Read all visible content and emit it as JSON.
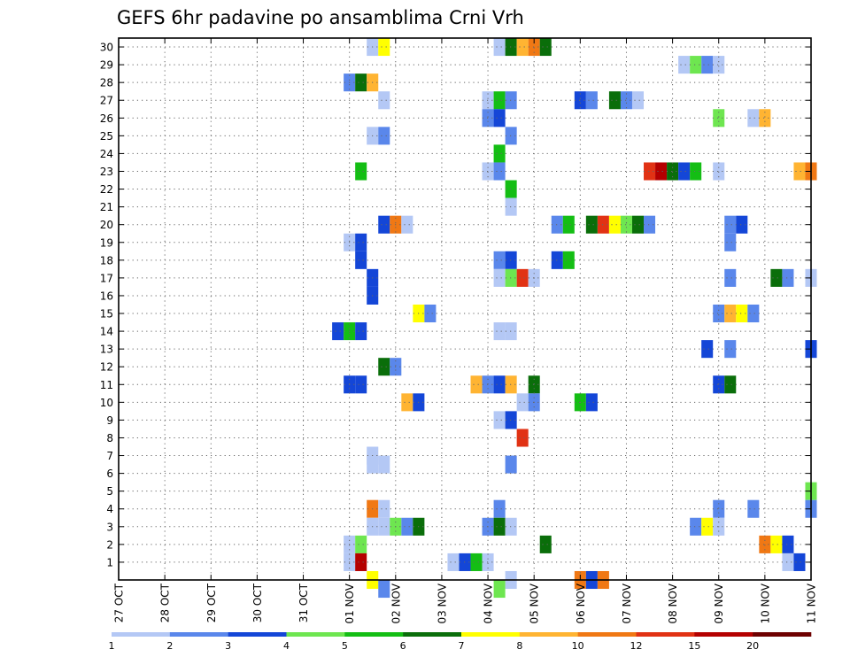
{
  "chart_data": {
    "type": "heatmap",
    "title": "GEFS 6hr padavine po ansamblima Crni Vrh",
    "x_tick_labels": [
      "27 OCT",
      "28 OCT",
      "29 OCT",
      "30 OCT",
      "31 OCT",
      "01 NOV",
      "02 NOV",
      "03 NOV",
      "04 NOV",
      "05 NOV",
      "06 NOV",
      "07 NOV",
      "08 NOV",
      "09 NOV",
      "10 NOV",
      "11 NOV"
    ],
    "y_tick_labels": [
      "1",
      "2",
      "3",
      "4",
      "5",
      "6",
      "7",
      "8",
      "9",
      "10",
      "11",
      "12",
      "13",
      "14",
      "15",
      "16",
      "17",
      "18",
      "19",
      "20",
      "21",
      "22",
      "23",
      "24",
      "25",
      "26",
      "27",
      "28",
      "29",
      "30"
    ],
    "steps_per_day": 4,
    "n_steps": 61,
    "ylim": [
      0,
      30.5
    ],
    "grid": true,
    "colorbar_labels": [
      "1",
      "2",
      "3",
      "4",
      "5",
      "6",
      "7",
      "8",
      "10",
      "12",
      "15",
      "20"
    ],
    "colors": [
      "#b4c8f5",
      "#5a87eb",
      "#1446d7",
      "#6ee650",
      "#14be14",
      "#0a6e0a",
      "#ffff00",
      "#ffb432",
      "#f07814",
      "#e13214",
      "#b40000",
      "#6e0000"
    ],
    "cells": [
      [
        22,
        30,
        1
      ],
      [
        23,
        30,
        7
      ],
      [
        33,
        30,
        1
      ],
      [
        34,
        30,
        6
      ],
      [
        35,
        30,
        8
      ],
      [
        36,
        30,
        9
      ],
      [
        37,
        30,
        6
      ],
      [
        49,
        29,
        1
      ],
      [
        50,
        29,
        4
      ],
      [
        51,
        29,
        2
      ],
      [
        52,
        29,
        1
      ],
      [
        20,
        28,
        2
      ],
      [
        21,
        28,
        6
      ],
      [
        22,
        28,
        8
      ],
      [
        23,
        27,
        1
      ],
      [
        32,
        27,
        1
      ],
      [
        33,
        27,
        5
      ],
      [
        34,
        27,
        2
      ],
      [
        40,
        27,
        3
      ],
      [
        41,
        27,
        2
      ],
      [
        43,
        27,
        6
      ],
      [
        44,
        27,
        2
      ],
      [
        45,
        27,
        1
      ],
      [
        32,
        26,
        2
      ],
      [
        33,
        26,
        3
      ],
      [
        52,
        26,
        4
      ],
      [
        55,
        26,
        1
      ],
      [
        56,
        26,
        8
      ],
      [
        22,
        25,
        1
      ],
      [
        23,
        25,
        2
      ],
      [
        34,
        25,
        2
      ],
      [
        33,
        24,
        5
      ],
      [
        21,
        23,
        5
      ],
      [
        32,
        23,
        1
      ],
      [
        33,
        23,
        2
      ],
      [
        46,
        23,
        10
      ],
      [
        47,
        23,
        11
      ],
      [
        48,
        23,
        6
      ],
      [
        49,
        23,
        3
      ],
      [
        50,
        23,
        5
      ],
      [
        52,
        23,
        1
      ],
      [
        59,
        23,
        8
      ],
      [
        60,
        23,
        9
      ],
      [
        34,
        22,
        5
      ],
      [
        34,
        21,
        1
      ],
      [
        23,
        20,
        3
      ],
      [
        24,
        20,
        9
      ],
      [
        25,
        20,
        1
      ],
      [
        38,
        20,
        2
      ],
      [
        39,
        20,
        5
      ],
      [
        41,
        20,
        6
      ],
      [
        42,
        20,
        10
      ],
      [
        43,
        20,
        7
      ],
      [
        44,
        20,
        4
      ],
      [
        45,
        20,
        6
      ],
      [
        46,
        20,
        2
      ],
      [
        53,
        20,
        2
      ],
      [
        54,
        20,
        3
      ],
      [
        20,
        19,
        1
      ],
      [
        21,
        19,
        3
      ],
      [
        53,
        19,
        2
      ],
      [
        21,
        18,
        3
      ],
      [
        33,
        18,
        2
      ],
      [
        34,
        18,
        3
      ],
      [
        38,
        18,
        3
      ],
      [
        39,
        18,
        5
      ],
      [
        22,
        17,
        3
      ],
      [
        33,
        17,
        1
      ],
      [
        34,
        17,
        4
      ],
      [
        35,
        17,
        10
      ],
      [
        36,
        17,
        1
      ],
      [
        53,
        17,
        2
      ],
      [
        57,
        17,
        6
      ],
      [
        58,
        17,
        2
      ],
      [
        60,
        17,
        1
      ],
      [
        22,
        16,
        3
      ],
      [
        26,
        15,
        7
      ],
      [
        27,
        15,
        2
      ],
      [
        52,
        15,
        2
      ],
      [
        53,
        15,
        8
      ],
      [
        54,
        15,
        7
      ],
      [
        55,
        15,
        2
      ],
      [
        19,
        14,
        3
      ],
      [
        20,
        14,
        5
      ],
      [
        21,
        14,
        3
      ],
      [
        33,
        14,
        1
      ],
      [
        34,
        14,
        1
      ],
      [
        51,
        13,
        3
      ],
      [
        53,
        13,
        2
      ],
      [
        60,
        13,
        3
      ],
      [
        23,
        12,
        6
      ],
      [
        24,
        12,
        2
      ],
      [
        20,
        11,
        3
      ],
      [
        21,
        11,
        3
      ],
      [
        31,
        11,
        8
      ],
      [
        32,
        11,
        2
      ],
      [
        33,
        11,
        3
      ],
      [
        34,
        11,
        8
      ],
      [
        36,
        11,
        6
      ],
      [
        52,
        11,
        3
      ],
      [
        53,
        11,
        6
      ],
      [
        25,
        10,
        8
      ],
      [
        26,
        10,
        3
      ],
      [
        35,
        10,
        1
      ],
      [
        36,
        10,
        2
      ],
      [
        40,
        10,
        5
      ],
      [
        41,
        10,
        3
      ],
      [
        33,
        9,
        1
      ],
      [
        34,
        9,
        3
      ],
      [
        35,
        8,
        10
      ],
      [
        22,
        7,
        1
      ],
      [
        34,
        6.5,
        2
      ],
      [
        22,
        6.5,
        1
      ],
      [
        23,
        6.5,
        1
      ],
      [
        60,
        5,
        4
      ],
      [
        22,
        4,
        9
      ],
      [
        23,
        4,
        1
      ],
      [
        33,
        4,
        2
      ],
      [
        52,
        4,
        2
      ],
      [
        55,
        4,
        2
      ],
      [
        60,
        4,
        2
      ],
      [
        22,
        3,
        1
      ],
      [
        23,
        3,
        1
      ],
      [
        24,
        3,
        4
      ],
      [
        25,
        3,
        2
      ],
      [
        26,
        3,
        6
      ],
      [
        32,
        3,
        2
      ],
      [
        33,
        3,
        6
      ],
      [
        34,
        3,
        1
      ],
      [
        50,
        3,
        2
      ],
      [
        51,
        3,
        7
      ],
      [
        52,
        3,
        1
      ],
      [
        20,
        2,
        1
      ],
      [
        21,
        2,
        4
      ],
      [
        37,
        2,
        6
      ],
      [
        56,
        2,
        9
      ],
      [
        57,
        2,
        7
      ],
      [
        58,
        2,
        3
      ],
      [
        20,
        1,
        1
      ],
      [
        21,
        1,
        11
      ],
      [
        29,
        1,
        1
      ],
      [
        30,
        1,
        3
      ],
      [
        31,
        1,
        5
      ],
      [
        32,
        1,
        1
      ],
      [
        58,
        1,
        1
      ],
      [
        59,
        1,
        3
      ],
      [
        22,
        0,
        7
      ],
      [
        34,
        0,
        1
      ],
      [
        40,
        0,
        9
      ],
      [
        41,
        0,
        3
      ],
      [
        42,
        0,
        9
      ],
      [
        23,
        -0.5,
        2
      ],
      [
        33,
        -0.5,
        4
      ]
    ]
  }
}
